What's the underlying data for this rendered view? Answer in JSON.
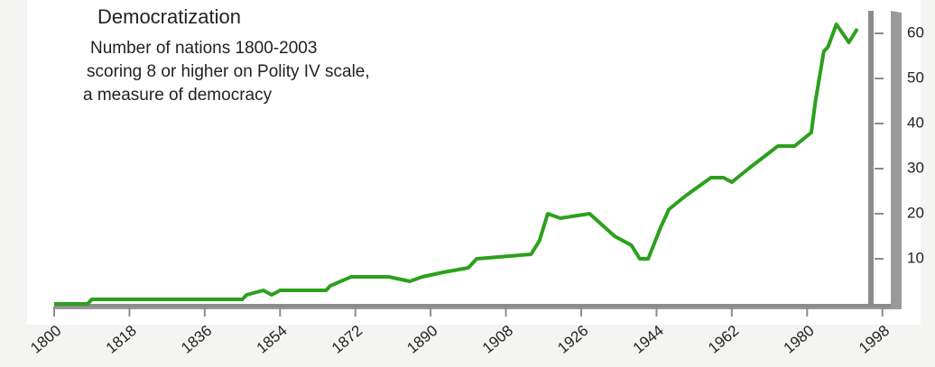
{
  "chart_data": {
    "type": "line",
    "title": "Democratization",
    "subtitle": [
      "Number of nations 1800-2003",
      "scoring 8 or higher on Polity IV scale,",
      "a measure of democracy"
    ],
    "x": [
      1800,
      1808,
      1809,
      1845,
      1846,
      1850,
      1852,
      1854,
      1865,
      1866,
      1871,
      1880,
      1885,
      1888,
      1893,
      1899,
      1901,
      1914,
      1916,
      1918,
      1921,
      1928,
      1934,
      1938,
      1940,
      1942,
      1945,
      1947,
      1951,
      1957,
      1960,
      1962,
      1966,
      1973,
      1977,
      1981,
      1982,
      1984,
      1985,
      1987,
      1990,
      1992
    ],
    "values": [
      0,
      0,
      1,
      1,
      2,
      3,
      2,
      3,
      3,
      4,
      6,
      6,
      5,
      6,
      7,
      8,
      10,
      11,
      14,
      20,
      19,
      20,
      15,
      13,
      10,
      10,
      17,
      21,
      24,
      28,
      28,
      27,
      30,
      35,
      35,
      38,
      45,
      56,
      57,
      62,
      58,
      61
    ],
    "color": "#2ca01c",
    "xlim": [
      1800,
      2000
    ],
    "xticks": [
      1800,
      1818,
      1836,
      1854,
      1872,
      1890,
      1908,
      1926,
      1944,
      1962,
      1980,
      1998
    ],
    "ylim": [
      0,
      65
    ],
    "yticks": [
      10,
      20,
      30,
      40,
      50,
      60
    ]
  }
}
